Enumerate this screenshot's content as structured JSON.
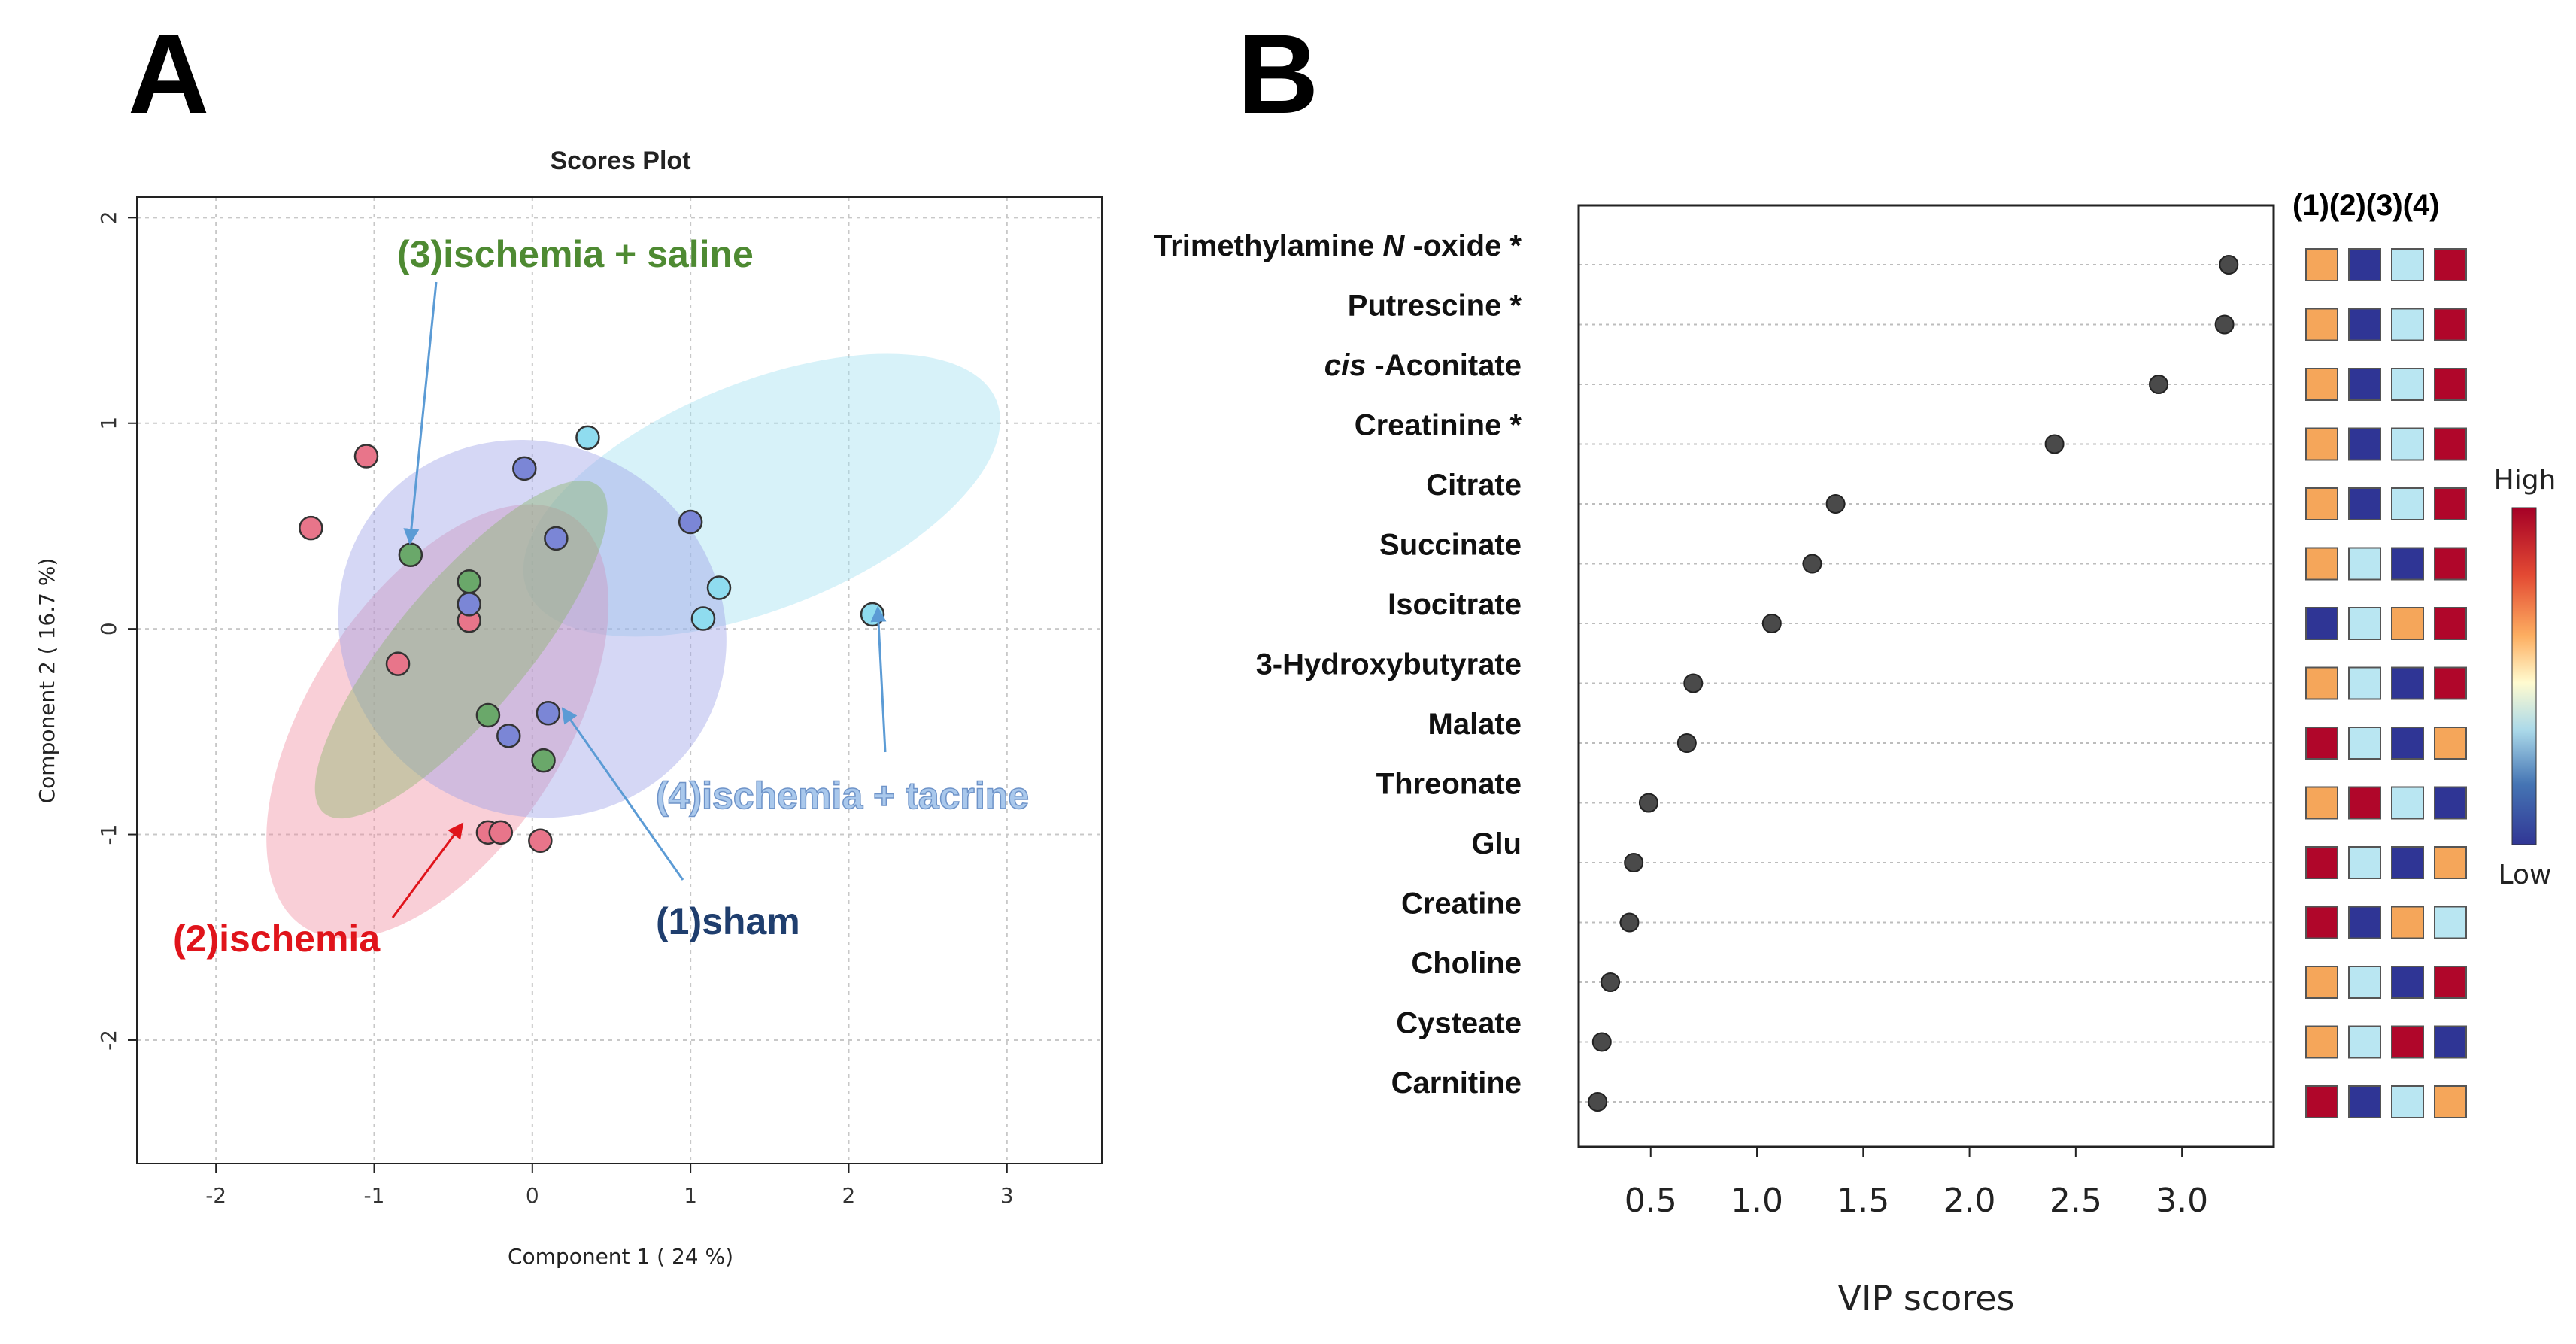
{
  "panels": {
    "a_letter": "A",
    "b_letter": "B"
  },
  "chart_data": [
    {
      "type": "scatter",
      "title": "Scores Plot",
      "xlabel": "Component 1 ( 24 %)",
      "ylabel": "Component 2 ( 16.7 %)",
      "xlim": [
        -2.5,
        3.6
      ],
      "ylim": [
        -2.6,
        2.1
      ],
      "xticks": [
        -2,
        -1,
        0,
        1,
        2,
        3
      ],
      "yticks": [
        -2,
        -1,
        0,
        1,
        2
      ],
      "grid": true,
      "series": [
        {
          "name": "(2)ischemia",
          "label": "(2)ischemia",
          "color": "#e8758a",
          "ellipse_color": "#f08ca0",
          "label_color": "#e0141b",
          "ellipse": {
            "cx": -0.6,
            "cy": -0.45,
            "rx": 1.55,
            "ry": 0.62,
            "angle_deg": -57
          },
          "points": [
            [
              -1.4,
              0.49
            ],
            [
              -1.05,
              0.84
            ],
            [
              -0.85,
              -0.17
            ],
            [
              -0.4,
              0.04
            ],
            [
              -0.28,
              -0.99
            ],
            [
              -0.2,
              -0.99
            ],
            [
              0.05,
              -1.03
            ]
          ]
        },
        {
          "name": "(3)ischemia + saline",
          "label": "(3)ischemia + saline",
          "color": "#6aa86a",
          "ellipse_color": "#8bb46a",
          "label_color": "#4e8a32",
          "ellipse": {
            "cx": -0.45,
            "cy": -0.1,
            "rx": 1.35,
            "ry": 0.32,
            "angle_deg": -50
          },
          "points": [
            [
              -0.77,
              0.36
            ],
            [
              -0.4,
              0.23
            ],
            [
              -0.28,
              -0.42
            ],
            [
              0.07,
              -0.64
            ]
          ]
        },
        {
          "name": "(1)sham",
          "label": "(1)sham",
          "color": "#7b86d6",
          "ellipse_color": "#9aa0e6",
          "label_color": "#1f3e6e",
          "ellipse": {
            "cx": 0.0,
            "cy": 0.0,
            "rx": 1.25,
            "ry": 0.9,
            "angle_deg": 33
          },
          "points": [
            [
              -0.05,
              0.78
            ],
            [
              0.15,
              0.44
            ],
            [
              1.0,
              0.52
            ],
            [
              -0.4,
              0.12
            ],
            [
              0.1,
              -0.41
            ],
            [
              -0.15,
              -0.52
            ]
          ]
        },
        {
          "name": "(4)ischemia + tacrine",
          "label": "(4)ischemia + tacrine",
          "color": "#8fdcef",
          "ellipse_color": "#9fdff0",
          "label_color": "#7aa3d6",
          "ellipse": {
            "cx": 1.45,
            "cy": 0.65,
            "rx": 1.6,
            "ry": 0.55,
            "angle_deg": -22
          },
          "points": [
            [
              0.35,
              0.93
            ],
            [
              1.18,
              0.2
            ],
            [
              1.08,
              0.05
            ],
            [
              2.15,
              0.07
            ]
          ]
        }
      ]
    },
    {
      "type": "dot",
      "xlabel": "VIP scores",
      "xlim": [
        0.2,
        3.35
      ],
      "xticks": [
        0.5,
        1.0,
        1.5,
        2.0,
        2.5,
        3.0
      ],
      "xtick_labels": [
        "0.5",
        "1.0",
        "1.5",
        "2.0",
        "2.5",
        "3.0"
      ],
      "heatmap_header": "(1)(2)(3)(4)",
      "legend": {
        "high": "High",
        "low": "Low"
      },
      "level_colors": {
        "1": "#2f3595",
        "2": "#b9e6f2",
        "3": "#f5a65a",
        "4": "#b0062a"
      },
      "items": [
        {
          "parts": [
            {
              "text": "Trimethylamine ",
              "italic": false
            },
            {
              "text": "N",
              "italic": true
            },
            {
              "text": " -oxide *",
              "italic": false
            }
          ],
          "vip": 3.22,
          "levels": [
            3,
            1,
            2,
            4
          ]
        },
        {
          "parts": [
            {
              "text": "Putrescine *",
              "italic": false
            }
          ],
          "vip": 3.2,
          "levels": [
            3,
            1,
            2,
            4
          ]
        },
        {
          "parts": [
            {
              "text": "cis",
              "italic": true
            },
            {
              "text": " -Aconitate",
              "italic": false
            }
          ],
          "vip": 2.89,
          "levels": [
            3,
            1,
            2,
            4
          ]
        },
        {
          "parts": [
            {
              "text": "Creatinine *",
              "italic": false
            }
          ],
          "vip": 2.4,
          "levels": [
            3,
            1,
            2,
            4
          ]
        },
        {
          "parts": [
            {
              "text": "Citrate",
              "italic": false
            }
          ],
          "vip": 1.37,
          "levels": [
            3,
            1,
            2,
            4
          ]
        },
        {
          "parts": [
            {
              "text": "Succinate",
              "italic": false
            }
          ],
          "vip": 1.26,
          "levels": [
            3,
            2,
            1,
            4
          ]
        },
        {
          "parts": [
            {
              "text": "Isocitrate",
              "italic": false
            }
          ],
          "vip": 1.07,
          "levels": [
            1,
            2,
            3,
            4
          ]
        },
        {
          "parts": [
            {
              "text": "3-Hydroxybutyrate",
              "italic": false
            }
          ],
          "vip": 0.7,
          "levels": [
            3,
            2,
            1,
            4
          ]
        },
        {
          "parts": [
            {
              "text": "Malate",
              "italic": false
            }
          ],
          "vip": 0.67,
          "levels": [
            4,
            2,
            1,
            3
          ]
        },
        {
          "parts": [
            {
              "text": "Threonate",
              "italic": false
            }
          ],
          "vip": 0.49,
          "levels": [
            3,
            4,
            2,
            1
          ]
        },
        {
          "parts": [
            {
              "text": "Glu",
              "italic": false
            }
          ],
          "vip": 0.42,
          "levels": [
            4,
            2,
            1,
            3
          ]
        },
        {
          "parts": [
            {
              "text": "Creatine",
              "italic": false
            }
          ],
          "vip": 0.4,
          "levels": [
            4,
            1,
            3,
            2
          ]
        },
        {
          "parts": [
            {
              "text": "Choline",
              "italic": false
            }
          ],
          "vip": 0.31,
          "levels": [
            3,
            2,
            1,
            4
          ]
        },
        {
          "parts": [
            {
              "text": "Cysteate",
              "italic": false
            }
          ],
          "vip": 0.27,
          "levels": [
            3,
            2,
            4,
            1
          ]
        },
        {
          "parts": [
            {
              "text": "Carnitine",
              "italic": false
            }
          ],
          "vip": 0.25,
          "levels": [
            4,
            1,
            2,
            3
          ]
        }
      ]
    }
  ]
}
